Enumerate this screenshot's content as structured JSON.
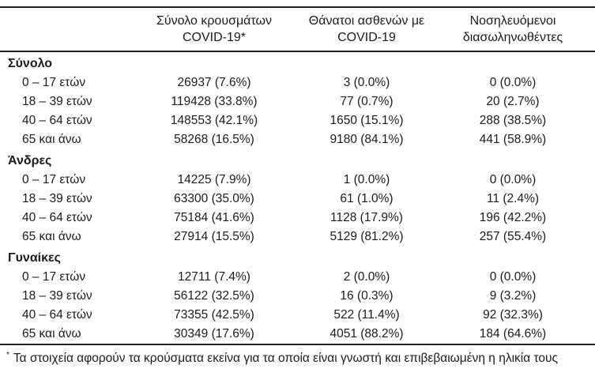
{
  "table": {
    "col_headers": [
      {
        "line1": "Σύνολο κρουσμάτων",
        "line2": "COVID-19*"
      },
      {
        "line1": "Θάνατοι ασθενών με",
        "line2": "COVID-19"
      },
      {
        "line1": "Νοσηλευόμενοι",
        "line2": "διασωληνωθέντες"
      }
    ],
    "sections": [
      {
        "label": "Σύνολο",
        "rows": [
          {
            "age": "0 – 17 ετών",
            "cases": "26937 (7.6%)",
            "deaths": "3 (0.0%)",
            "intubated": "0 (0.0%)"
          },
          {
            "age": "18 – 39 ετών",
            "cases": "119428 (33.8%)",
            "deaths": "77 (0.7%)",
            "intubated": "20 (2.7%)"
          },
          {
            "age": "40 – 64 ετών",
            "cases": "148553 (42.1%)",
            "deaths": "1650 (15.1%)",
            "intubated": "288 (38.5%)"
          },
          {
            "age": "65 και άνω",
            "cases": "58268 (16.5%)",
            "deaths": "9180 (84.1%)",
            "intubated": "441 (58.9%)"
          }
        ]
      },
      {
        "label": "Άνδρες",
        "rows": [
          {
            "age": "0 – 17 ετών",
            "cases": "14225 (7.9%)",
            "deaths": "1 (0.0%)",
            "intubated": "0 (0.0%)"
          },
          {
            "age": "18 – 39 ετών",
            "cases": "63300 (35.0%)",
            "deaths": "61 (1.0%)",
            "intubated": "11 (2.4%)"
          },
          {
            "age": "40 – 64 ετών",
            "cases": "75184 (41.6%)",
            "deaths": "1128 (17.9%)",
            "intubated": "196 (42.2%)"
          },
          {
            "age": "65 και άνω",
            "cases": "27914 (15.5%)",
            "deaths": "5129 (81.2%)",
            "intubated": "257 (55.4%)"
          }
        ]
      },
      {
        "label": "Γυναίκες",
        "rows": [
          {
            "age": "0 – 17 ετών",
            "cases": "12711 (7.4%)",
            "deaths": "2 (0.0%)",
            "intubated": "0 (0.0%)"
          },
          {
            "age": "18 – 39 ετών",
            "cases": "56122 (32.5%)",
            "deaths": "16 (0.3%)",
            "intubated": "9 (3.2%)"
          },
          {
            "age": "40 – 64 ετών",
            "cases": "73355 (42.5%)",
            "deaths": "522 (11.4%)",
            "intubated": "92 (32.3%)"
          },
          {
            "age": "65 και άνω",
            "cases": "30349 (17.6%)",
            "deaths": "4051 (88.2%)",
            "intubated": "184 (64.6%)"
          }
        ]
      }
    ],
    "footnote": {
      "marker": "*",
      "text": "Τα στοιχεία αφορούν τα κρούσματα εκείνα για τα οποία είναι γνωστή και επιβεβαιωμένη η ηλικία τους"
    },
    "text_color": "#1c1c1c",
    "rule_color": "#222222"
  }
}
